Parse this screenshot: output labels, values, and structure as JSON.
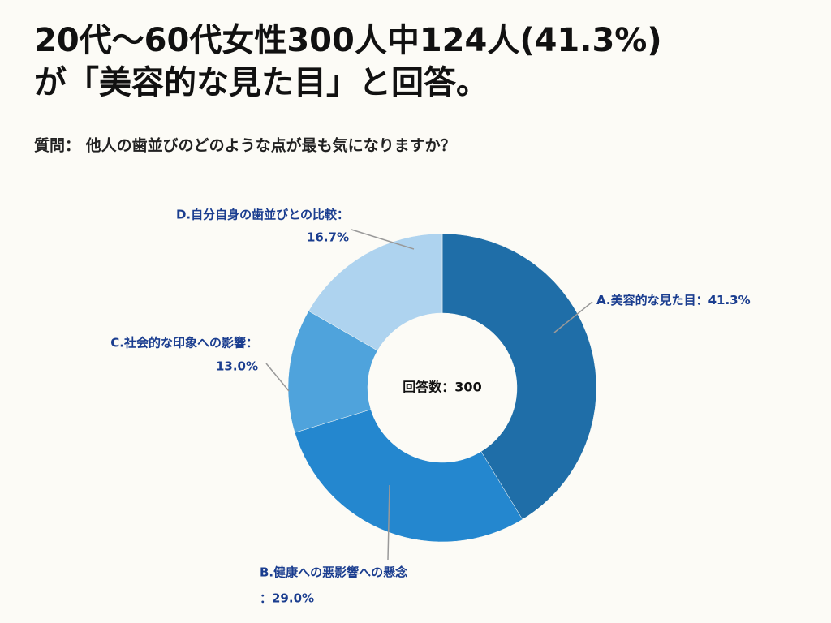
{
  "chart_data": {
    "type": "donut",
    "title": [
      "20代〜60代女性300人中124人(41.3%)",
      "が「美容的な見た目」と回答。"
    ],
    "subtitle": "質問：  他人の歯並びのどのような点が最も気になりますか？",
    "center_label": "回答数：300",
    "categories": [
      "A.美容的な見た目：",
      "B.健康への悪影響への懸念",
      "C.社会的な印象への影響：",
      "D.自分自身の歯並びとの比較："
    ],
    "values": [
      41.3,
      29.0,
      13.0,
      16.7
    ],
    "value_labels": [
      "41.3%",
      "：29.0%",
      "13.0%",
      "16.7%"
    ],
    "colors": [
      "#1f6ea8",
      "#2487cf",
      "#4fa3dc",
      "#aed3ef"
    ]
  }
}
